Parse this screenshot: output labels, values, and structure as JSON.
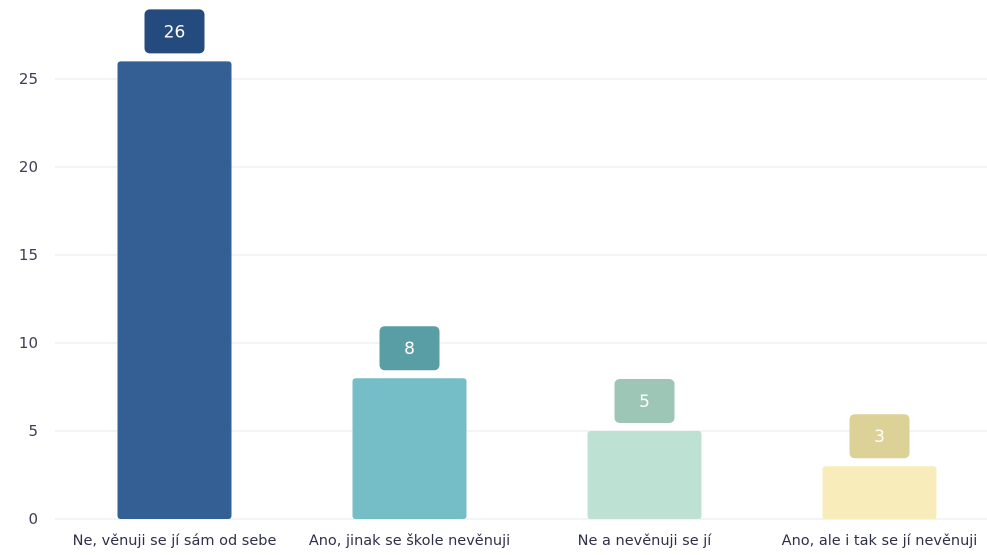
{
  "chart_data": {
    "type": "bar",
    "categories": [
      "Ne, věnuji se jí sám od sebe",
      "Ano, jinak se škole nevěnuji",
      "Ne a nevěnuji se jí",
      "Ano, ale i tak se jí nevěnuji"
    ],
    "values": [
      26,
      8,
      5,
      3
    ],
    "data_labels": [
      "26",
      "8",
      "5",
      "3"
    ],
    "y_ticks": [
      "0",
      "5",
      "10",
      "15",
      "20",
      "25"
    ],
    "ylim": [
      0,
      27.5
    ],
    "grid": true,
    "legend": "none",
    "colors": [
      "#335f95",
      "#75bec8",
      "#bde2d3",
      "#f8ecbb"
    ],
    "label_colors": [
      "#244a7e",
      "#5a9ea5",
      "#9ec6b6",
      "#dcd196"
    ]
  }
}
